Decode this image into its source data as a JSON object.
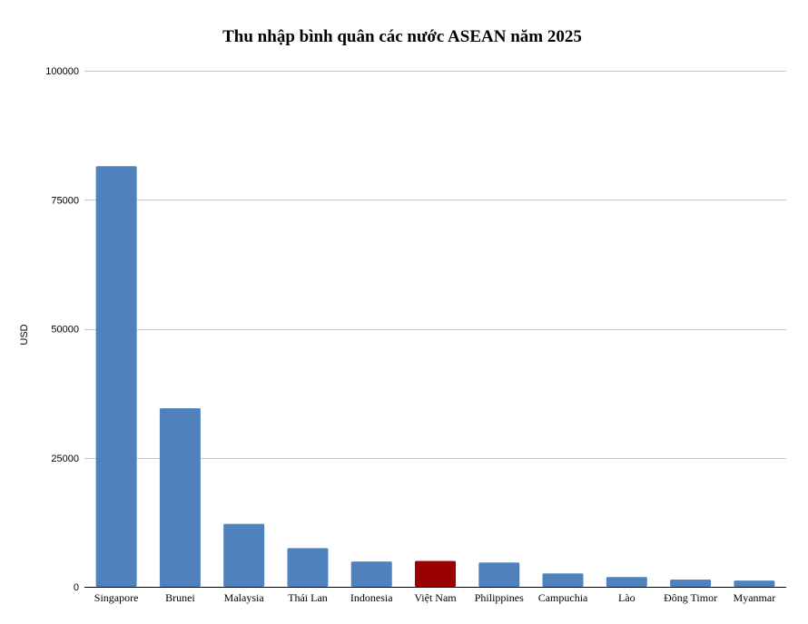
{
  "chart_data": {
    "type": "bar",
    "title": "Thu nhập bình quân các nước ASEAN năm 2025",
    "xlabel": "",
    "ylabel": "USD",
    "ylim": [
      0,
      100000
    ],
    "yticks": [
      "0",
      "25000",
      "50000",
      "75000",
      "100000"
    ],
    "grid": true,
    "categories": [
      "Singapore",
      "Brunei",
      "Malaysia",
      "Thái Lan",
      "Indonesia",
      "Việt Nam",
      "Philippines",
      "Campuchia",
      "Lào",
      "Đông Timor",
      "Myanmar"
    ],
    "values": [
      81500,
      34600,
      12200,
      7500,
      4900,
      5000,
      4700,
      2600,
      1900,
      1400,
      1200
    ],
    "colors": {
      "default": "#4f81bd",
      "highlight": "#9b0000",
      "highlight_category": "Việt Nam"
    }
  }
}
